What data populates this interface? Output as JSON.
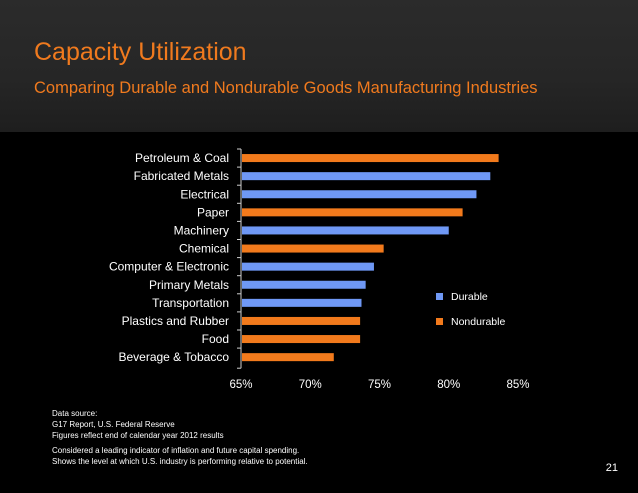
{
  "slide": {
    "title": "Capacity Utilization",
    "subtitle": "Comparing Durable and Nondurable Goods Manufacturing Industries",
    "page_number": "21"
  },
  "notes": {
    "source_label": "Data source:",
    "source": "G17 Report, U.S. Federal Reserve",
    "period": "Figures reflect end of calendar year 2012 results",
    "description_1": "Considered a leading indicator of inflation and future capital spending.",
    "description_2": "Shows the level at which U.S. industry is performing relative to potential."
  },
  "colors": {
    "durable": "#6f98f5",
    "nondurable": "#f27a1c",
    "accent": "#f07a1e"
  },
  "chart_data": {
    "type": "bar",
    "orientation": "horizontal",
    "title": "",
    "xlabel": "",
    "ylabel": "",
    "xlim": [
      65,
      85
    ],
    "ticks": [
      65,
      70,
      75,
      80,
      85
    ],
    "tick_labels": [
      "65%",
      "70%",
      "75%",
      "80%",
      "85%"
    ],
    "legend_position": "right",
    "legend": [
      {
        "name": "Durable",
        "key": "durable"
      },
      {
        "name": "Nondurable",
        "key": "nondurable"
      }
    ],
    "bars": [
      {
        "category": "Petroleum & Coal",
        "value": 83.6,
        "series": "nondurable"
      },
      {
        "category": "Fabricated Metals",
        "value": 83.0,
        "series": "durable"
      },
      {
        "category": "Electrical",
        "value": 82.0,
        "series": "durable"
      },
      {
        "category": "Paper",
        "value": 81.0,
        "series": "nondurable"
      },
      {
        "category": "Machinery",
        "value": 80.0,
        "series": "durable"
      },
      {
        "category": "Chemical",
        "value": 75.3,
        "series": "nondurable"
      },
      {
        "category": "Computer & Electronic",
        "value": 74.6,
        "series": "durable"
      },
      {
        "category": "Primary Metals",
        "value": 74.0,
        "series": "durable"
      },
      {
        "category": "Transportation",
        "value": 73.7,
        "series": "durable"
      },
      {
        "category": "Plastics and Rubber",
        "value": 73.6,
        "series": "nondurable"
      },
      {
        "category": "Food",
        "value": 73.6,
        "series": "nondurable"
      },
      {
        "category": "Beverage & Tobacco",
        "value": 71.7,
        "series": "nondurable"
      }
    ]
  }
}
